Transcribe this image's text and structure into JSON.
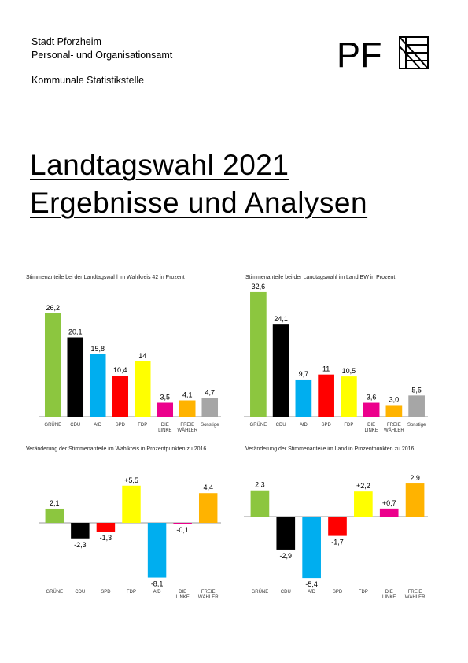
{
  "header": {
    "org_line1": "Stadt Pforzheim",
    "org_line2": "Personal- und Organisationsamt",
    "department": "Kommunale Statistikstelle",
    "logo_text": "PF"
  },
  "title": {
    "line1": "Landtagswahl 2021",
    "line2": "Ergebnisse und Analysen"
  },
  "chart_data": [
    {
      "type": "bar",
      "title": "Stimmenanteile bei der Landtagswahl im Wahlkreis 42 in Prozent",
      "categories": [
        "GRÜNE",
        "CDU",
        "AfD",
        "SPD",
        "FDP",
        "DIE LINKE",
        "FREIE WÄHLER",
        "Sonstige"
      ],
      "values": [
        26.2,
        20.1,
        15.8,
        10.4,
        14,
        3.5,
        4.1,
        4.7
      ],
      "value_labels": [
        "26,2",
        "20,1",
        "15,8",
        "10,4",
        "14",
        "3,5",
        "4,1",
        "4,7"
      ],
      "colors": [
        "#8cc63f",
        "#000000",
        "#00aeef",
        "#ff0000",
        "#ffff00",
        "#ec008c",
        "#ffb300",
        "#a6a6a6"
      ],
      "ylim": [
        0,
        30
      ]
    },
    {
      "type": "bar",
      "title": "Stimmenanteile bei der Landtagswahl im Land BW in Prozent",
      "categories": [
        "GRÜNE",
        "CDU",
        "AfD",
        "SPD",
        "FDP",
        "DIE LINKE",
        "FREIE WÄHLER",
        "Sonstige"
      ],
      "values": [
        32.6,
        24.1,
        9.7,
        11,
        10.5,
        3.6,
        3,
        5.5
      ],
      "value_labels": [
        "32,6",
        "24,1",
        "9,7",
        "11",
        "10,5",
        "3,6",
        "3,0",
        "5,5"
      ],
      "colors": [
        "#8cc63f",
        "#000000",
        "#00aeef",
        "#ff0000",
        "#ffff00",
        "#ec008c",
        "#ffb300",
        "#a6a6a6"
      ],
      "ylim": [
        0,
        33
      ]
    },
    {
      "type": "bar",
      "title": "Veränderung der Stimmenanteile im Wahlkreis in Prozentpunkten zu 2016",
      "categories": [
        "GRÜNE",
        "CDU",
        "SPD",
        "FDP",
        "AfD",
        "DIE LINKE",
        "FREIE WÄHLER"
      ],
      "values": [
        2.1,
        -2.3,
        -1.3,
        5.5,
        -8.1,
        -0.1,
        4.4
      ],
      "value_labels": [
        "2,1",
        "-2,3",
        "-1,3",
        "+5,5",
        "-8,1",
        "-0,1",
        "4,4"
      ],
      "colors": [
        "#8cc63f",
        "#000000",
        "#ff0000",
        "#ffff00",
        "#00aeef",
        "#ec008c",
        "#ffb300"
      ],
      "ylim": [
        -8.5,
        6
      ]
    },
    {
      "type": "bar",
      "title": "Veränderung der Stimmenanteile im Land in Prozentpunkten zu 2016",
      "categories": [
        "GRÜNE",
        "CDU",
        "AfD",
        "SPD",
        "FDP",
        "DIE LINKE",
        "FREIE WÄHLER"
      ],
      "values": [
        2.3,
        -2.9,
        -5.4,
        -1.7,
        2.2,
        0.7,
        2.9
      ],
      "value_labels": [
        "2,3",
        "-2,9",
        "-5,4",
        "-1,7",
        "+2,2",
        "+0,7",
        "2,9"
      ],
      "colors": [
        "#8cc63f",
        "#000000",
        "#00aeef",
        "#ff0000",
        "#ffff00",
        "#ec008c",
        "#ffb300"
      ],
      "ylim": [
        -5.6,
        3.2
      ]
    }
  ]
}
